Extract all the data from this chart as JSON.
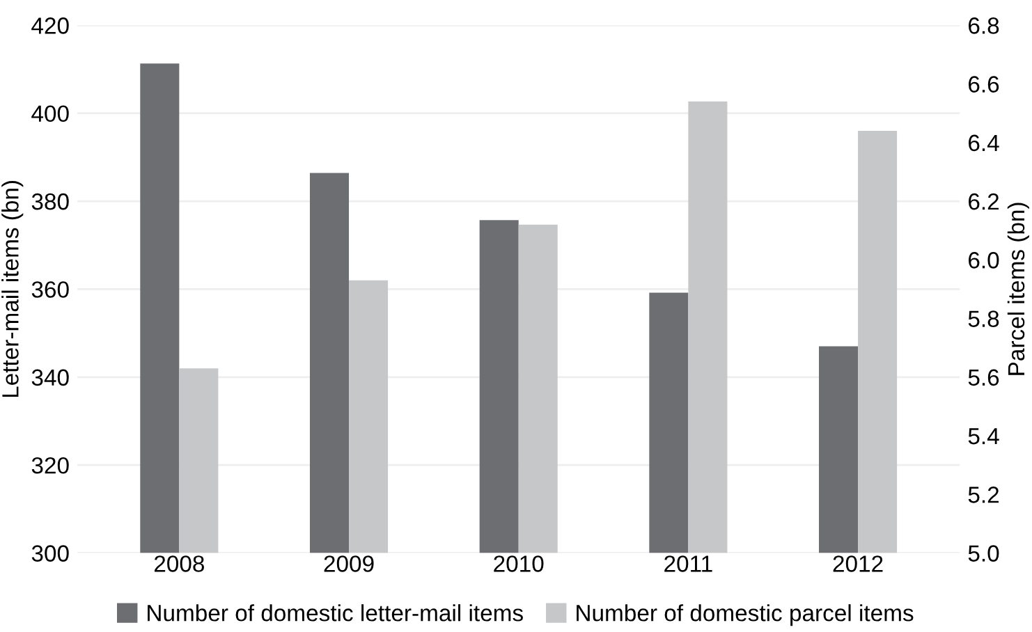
{
  "chart_data": {
    "type": "bar",
    "categories": [
      "2008",
      "2009",
      "2010",
      "2011",
      "2012"
    ],
    "ylabel": "Letter-mail items (bn)",
    "y2label": "Parcel items (bn)",
    "series": [
      {
        "name": "Number of domestic letter-mail items",
        "color": "#6d6e72",
        "values": [
          411.3,
          386.4,
          375.7,
          359.2,
          347.0
        ]
      },
      {
        "name": "Number of domestic parcel items",
        "color": "#c6c7c9",
        "axis": "y2",
        "values": [
          5.63,
          5.93,
          6.12,
          6.54,
          6.44
        ]
      }
    ],
    "ylim": [
      300,
      420
    ],
    "yticks": [
      300,
      320,
      340,
      360,
      380,
      400,
      420
    ],
    "y2lim": [
      5.0,
      6.8
    ],
    "y2ticks": [
      {
        "value": 5.0,
        "label": "5.0"
      },
      {
        "value": 5.2,
        "label": "5.2"
      },
      {
        "value": 5.4,
        "label": "5.4"
      },
      {
        "value": 5.6,
        "label": "5.6"
      },
      {
        "value": 5.8,
        "label": "5.8"
      },
      {
        "value": 6.0,
        "label": "6.0"
      },
      {
        "value": 6.2,
        "label": "6.2"
      },
      {
        "value": 6.4,
        "label": "6.4"
      },
      {
        "value": 6.6,
        "label": "6.6"
      },
      {
        "value": 6.8,
        "label": "6.8"
      }
    ],
    "grid": "y",
    "legend": "bottom"
  }
}
